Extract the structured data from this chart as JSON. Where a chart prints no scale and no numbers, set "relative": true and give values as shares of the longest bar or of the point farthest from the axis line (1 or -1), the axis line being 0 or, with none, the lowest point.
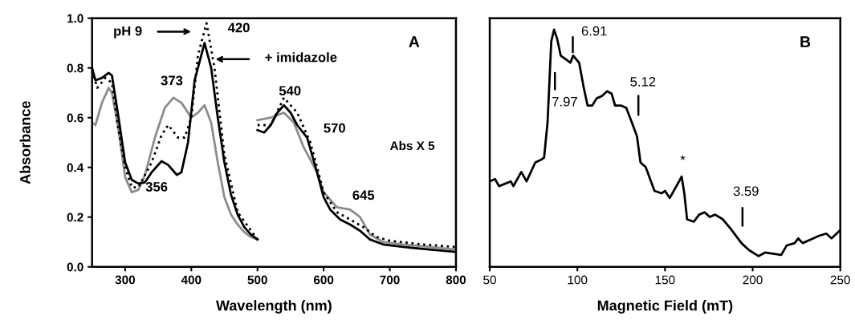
{
  "chart_data": [
    {
      "type": "line",
      "xlabel": "Wavelength (nm)",
      "ylabel": "Absorbance",
      "xlim": [
        250,
        800
      ],
      "xticks": [
        300,
        400,
        500,
        600,
        700,
        800
      ],
      "ylim": [
        0,
        1.0
      ],
      "yticks": [
        {
          "value": 0,
          "label": "0.0"
        },
        {
          "value": 0.2,
          "label": "0.2"
        },
        {
          "value": 0.4,
          "label": "0.4"
        },
        {
          "value": 0.6,
          "label": "0.6"
        },
        {
          "value": 0.8,
          "label": "0.8"
        },
        {
          "value": 1.0,
          "label": "1.0"
        }
      ],
      "grid": false,
      "series": [
        {
          "color": "#8c8c8c",
          "line_style": "solid",
          "x": [
            250,
            255,
            265,
            275,
            280,
            290,
            300,
            310,
            320,
            330,
            345,
            360,
            373,
            385,
            400,
            410,
            420,
            430,
            440,
            450,
            460,
            470,
            480,
            490,
            500
          ],
          "values": [
            0.58,
            0.57,
            0.66,
            0.72,
            0.7,
            0.55,
            0.36,
            0.3,
            0.31,
            0.37,
            0.52,
            0.64,
            0.68,
            0.66,
            0.6,
            0.62,
            0.65,
            0.58,
            0.42,
            0.28,
            0.21,
            0.17,
            0.14,
            0.12,
            0.11
          ]
        },
        {
          "color": "#8c8c8c",
          "line_style": "solid",
          "x": [
            500,
            520,
            540,
            555,
            570,
            590,
            600,
            620,
            640,
            655,
            670,
            690,
            720,
            760,
            800
          ],
          "values": [
            0.59,
            0.6,
            0.62,
            0.58,
            0.48,
            0.38,
            0.3,
            0.24,
            0.23,
            0.2,
            0.13,
            0.1,
            0.09,
            0.08,
            0.07
          ]
        },
        {
          "color": "#000000",
          "line_style": "dotted",
          "x": [
            250,
            258,
            270,
            280,
            290,
            300,
            310,
            320,
            340,
            355,
            365,
            380,
            390,
            400,
            410,
            423,
            435,
            450,
            470,
            500
          ],
          "values": [
            0.79,
            0.72,
            0.76,
            0.74,
            0.55,
            0.4,
            0.32,
            0.32,
            0.42,
            0.53,
            0.57,
            0.52,
            0.52,
            0.6,
            0.85,
            0.98,
            0.8,
            0.45,
            0.22,
            0.11
          ]
        },
        {
          "color": "#000000",
          "line_style": "dotted",
          "x": [
            500,
            520,
            540,
            560,
            580,
            600,
            620,
            640,
            660,
            680,
            700,
            750,
            800
          ],
          "values": [
            0.57,
            0.57,
            0.68,
            0.62,
            0.5,
            0.3,
            0.22,
            0.19,
            0.16,
            0.12,
            0.105,
            0.09,
            0.08
          ]
        },
        {
          "color": "#000000",
          "line_style": "solid",
          "x": [
            250,
            255,
            265,
            275,
            280,
            290,
            300,
            310,
            320,
            330,
            340,
            355,
            365,
            378,
            385,
            395,
            405,
            420,
            430,
            440,
            450,
            460,
            470,
            480,
            490,
            500
          ],
          "values": [
            0.8,
            0.75,
            0.76,
            0.78,
            0.77,
            0.6,
            0.42,
            0.35,
            0.335,
            0.34,
            0.38,
            0.425,
            0.41,
            0.37,
            0.38,
            0.5,
            0.75,
            0.9,
            0.8,
            0.6,
            0.42,
            0.29,
            0.21,
            0.16,
            0.13,
            0.11
          ]
        },
        {
          "color": "#000000",
          "line_style": "solid",
          "x": [
            500,
            510,
            520,
            530,
            540,
            550,
            560,
            575,
            590,
            600,
            610,
            625,
            640,
            655,
            670,
            690,
            720,
            760,
            800
          ],
          "values": [
            0.55,
            0.54,
            0.57,
            0.62,
            0.65,
            0.62,
            0.57,
            0.52,
            0.38,
            0.28,
            0.23,
            0.19,
            0.17,
            0.145,
            0.11,
            0.09,
            0.08,
            0.07,
            0.06
          ]
        }
      ],
      "annotations": [
        "pH 9",
        "+ imidazole",
        {
          "text": "420",
          "x": 423,
          "y": 0.98
        },
        {
          "text": "373",
          "x": 373,
          "y": 0.68
        },
        {
          "text": "356",
          "x": 356,
          "y": 0.425
        },
        {
          "text": "540",
          "x": 540,
          "y": 0.65
        },
        {
          "text": "570",
          "x": 570,
          "y": 0.53
        },
        {
          "text": "645",
          "x": 645,
          "y": 0.23
        },
        "Abs X 5",
        "A"
      ]
    },
    {
      "type": "line",
      "xlabel": "Magnetic Field (mT)",
      "relative": true,
      "tick_labels": "x",
      "xlim": [
        50,
        250
      ],
      "xticks": [
        50,
        100,
        150,
        200,
        250
      ],
      "grid": false,
      "series": [
        {
          "color": "#000000",
          "line_style": "solid",
          "x": [
            50,
            53,
            55.3,
            62,
            63.5,
            68,
            71,
            76,
            79,
            81,
            83,
            85.1,
            86.7,
            88.5,
            90.5,
            94.3,
            96,
            97.6,
            101,
            103.5,
            105.8,
            108.5,
            111,
            114,
            117,
            119.5,
            121.5,
            124.8,
            127.9,
            131,
            134,
            136,
            139,
            144,
            148,
            150,
            152.7,
            156.5,
            159.5,
            161,
            162.6,
            166.4,
            169.5,
            172.5,
            175.6,
            178.6,
            183,
            187.5,
            193.6,
            198,
            203.4,
            207,
            216.3,
            219.4,
            224,
            226,
            228.5,
            234.6,
            237.6,
            242,
            245,
            250
          ],
          "values": [
            0.36,
            0.37,
            0.34,
            0.36,
            0.34,
            0.4,
            0.36,
            0.44,
            0.45,
            0.46,
            0.61,
            0.95,
            1.0,
            0.96,
            0.89,
            0.87,
            0.86,
            0.89,
            0.86,
            0.76,
            0.68,
            0.68,
            0.71,
            0.72,
            0.74,
            0.73,
            0.68,
            0.68,
            0.67,
            0.61,
            0.55,
            0.44,
            0.42,
            0.32,
            0.31,
            0.32,
            0.29,
            0.34,
            0.38,
            0.31,
            0.2,
            0.19,
            0.22,
            0.23,
            0.21,
            0.22,
            0.2,
            0.16,
            0.1,
            0.07,
            0.045,
            0.06,
            0.05,
            0.09,
            0.1,
            0.12,
            0.1,
            0.12,
            0.13,
            0.14,
            0.12,
            0.155
          ]
        }
      ],
      "annotations": [
        "6.91",
        "7.97",
        "5.12",
        "3.59",
        {
          "text": "*",
          "x": 159.5,
          "y": 0.38
        },
        "B"
      ]
    }
  ]
}
